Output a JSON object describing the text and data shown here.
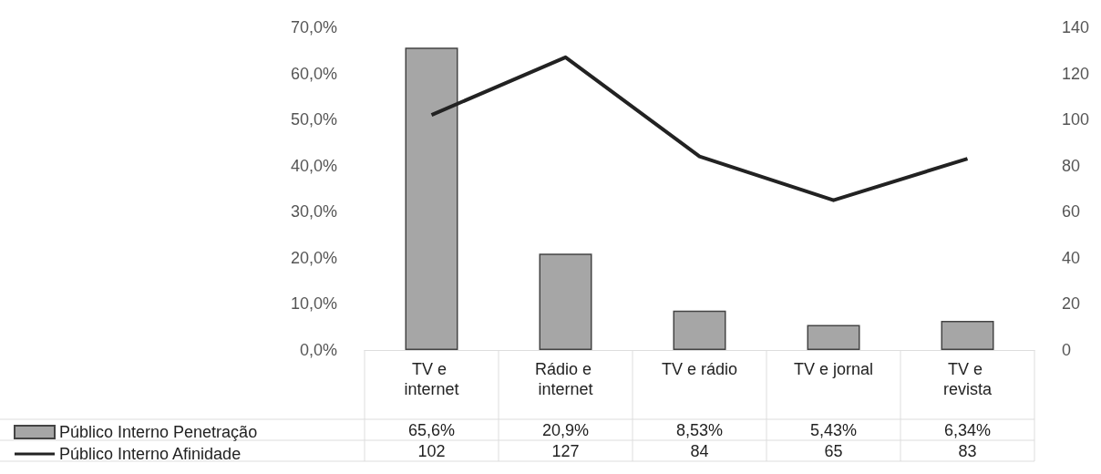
{
  "chart_data": {
    "type": "bar",
    "categories": [
      "TV e internet",
      "Rádio e internet",
      "TV e rádio",
      "TV e jornal",
      "TV e revista"
    ],
    "series": [
      {
        "name": "Público Interno Penetração",
        "color": "#a6a6a6",
        "values": [
          65.6,
          20.9,
          8.53,
          5.43,
          6.34
        ],
        "value_labels": [
          "65,6%",
          "20,9%",
          "8,53%",
          "5,43%",
          "6,34%"
        ]
      },
      {
        "name": "Público Interno Afinidade",
        "type": "line",
        "axis": "y2",
        "color": "#222222",
        "values": [
          102,
          127,
          84,
          65,
          83
        ],
        "value_labels": [
          "102",
          "127",
          "84",
          "65",
          "83"
        ]
      }
    ],
    "ylim": [
      0,
      70
    ],
    "yticks": [
      {
        "value": 0,
        "label": "0,0%"
      },
      {
        "value": 10,
        "label": "10,0%"
      },
      {
        "value": 20,
        "label": "20,0%"
      },
      {
        "value": 30,
        "label": "30,0%"
      },
      {
        "value": 40,
        "label": "40,0%"
      },
      {
        "value": 50,
        "label": "50,0%"
      },
      {
        "value": 60,
        "label": "60,0%"
      },
      {
        "value": 70,
        "label": "70,0%"
      }
    ],
    "y2lim": [
      0,
      140
    ],
    "y2ticks": [
      0,
      20,
      40,
      60,
      80,
      100,
      120,
      140
    ],
    "grid": false,
    "legend": "bottom left",
    "marker": "none"
  }
}
